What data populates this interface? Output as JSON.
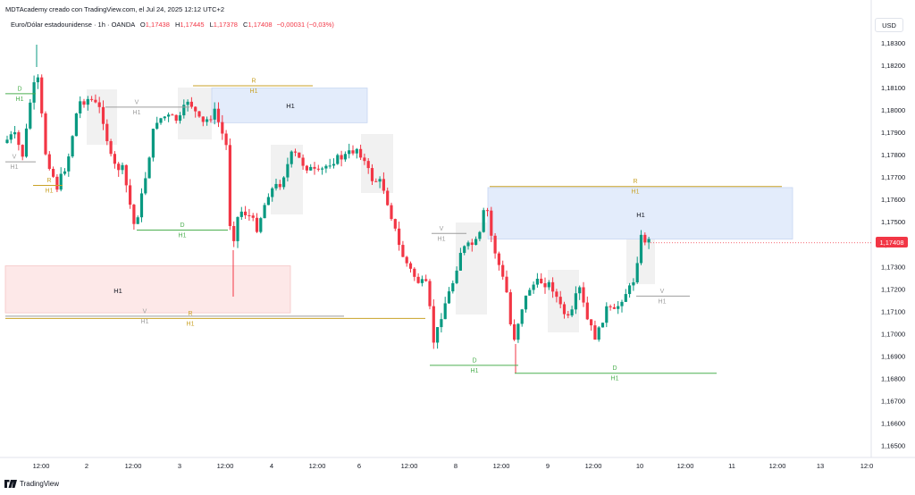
{
  "header": {
    "author_line": "MDTAcademy creado con TradingView.com, el Jul 24, 2025 12:12 UTC+2"
  },
  "legend": {
    "symbol": "Euro/Dólar estadounidense · 1h · OANDA",
    "open_label": "O",
    "open": "1,17438",
    "high_label": "H",
    "high": "1,17445",
    "low_label": "L",
    "low": "1,17378",
    "close_label": "C",
    "close": "1,17408",
    "change": "−0,00031 (−0,03%)"
  },
  "currency_button": "USD",
  "last_price": "1,17408",
  "colors": {
    "up": "#089981",
    "down": "#f23645",
    "daily": "#4caf50",
    "range": "#c9a227",
    "vlevel": "#9e9e9e",
    "blue_zone": "#e3ecfb",
    "red_zone": "#fde8e8",
    "gray_zone": "#eeeeee"
  },
  "footer": {
    "brand": "TradingView",
    "logo_icon": "tradingview-logo-icon"
  },
  "chart_data": {
    "type": "candlestick",
    "y_axis_labels": [
      "1,18300",
      "1,18200",
      "1,18100",
      "1,18000",
      "1,17900",
      "1,17800",
      "1,17700",
      "1,17600",
      "1,17500",
      "1,17400",
      "1,17300",
      "1,17200",
      "1,17100",
      "1,17000",
      "1,16900",
      "1,16800",
      "1,16700",
      "1,16600",
      "1,16500"
    ],
    "y_values": [
      1.183,
      1.182,
      1.181,
      1.18,
      1.179,
      1.178,
      1.177,
      1.176,
      1.175,
      1.174,
      1.173,
      1.172,
      1.171,
      1.17,
      1.169,
      1.168,
      1.167,
      1.166,
      1.165
    ],
    "x_axis_labels": [
      "12:00",
      "2",
      "12:00",
      "3",
      "12:00",
      "4",
      "12:00",
      "6",
      "12:00",
      "8",
      "12:00",
      "9",
      "12:00",
      "10",
      "12:00",
      "11",
      "12:00",
      "13",
      "12:0"
    ],
    "ylim": [
      1.164,
      1.1843
    ],
    "zones": [
      {
        "label": "H1",
        "kind": "blue",
        "y_top": 1.181,
        "y_bottom": 1.17945
      },
      {
        "label": "H1",
        "kind": "red",
        "y_top": 1.17305,
        "y_bottom": 1.17095
      },
      {
        "label": "H1",
        "kind": "blue",
        "y_top": 1.17655,
        "y_bottom": 1.17425
      }
    ],
    "levels": [
      {
        "letter": "D",
        "tf": "H1",
        "kind": "daily",
        "price": 1.18075
      },
      {
        "letter": "V",
        "tf": "H1",
        "kind": "vlevel",
        "price": 1.1777
      },
      {
        "letter": "R",
        "tf": "H1",
        "kind": "range",
        "price": 1.17665
      },
      {
        "letter": "V",
        "tf": "H1",
        "kind": "vlevel",
        "price": 1.18015
      },
      {
        "letter": "R",
        "tf": "H1",
        "kind": "range",
        "price": 1.1811
      },
      {
        "letter": "D",
        "tf": "H1",
        "kind": "daily",
        "price": 1.17465
      },
      {
        "letter": "V",
        "tf": "H1",
        "kind": "vlevel",
        "price": 1.1708
      },
      {
        "letter": "R",
        "tf": "H1",
        "kind": "range",
        "price": 1.1707
      },
      {
        "letter": "V",
        "tf": "H1",
        "kind": "vlevel",
        "price": 1.1745
      },
      {
        "letter": "D",
        "tf": "H1",
        "kind": "daily",
        "price": 1.1686
      },
      {
        "letter": "R",
        "tf": "H1",
        "kind": "range",
        "price": 1.1766
      },
      {
        "letter": "D",
        "tf": "H1",
        "kind": "daily",
        "price": 1.16825
      },
      {
        "letter": "V",
        "tf": "H1",
        "kind": "vlevel",
        "price": 1.1717
      }
    ],
    "extra_labels": [
      "H1"
    ],
    "last_price": 1.17408
  }
}
